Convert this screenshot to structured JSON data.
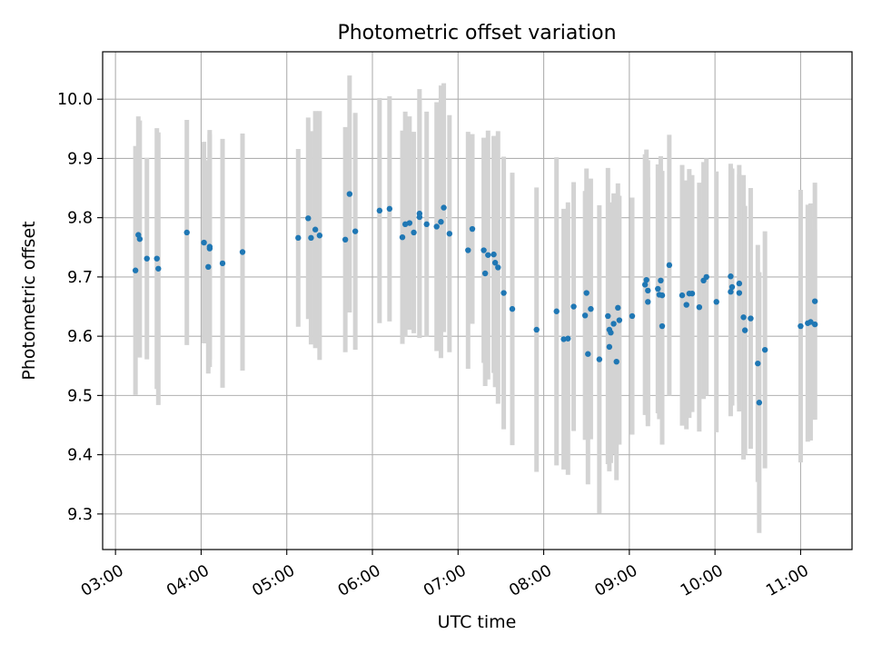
{
  "chart_data": {
    "type": "scatter",
    "title": "Photometric offset variation",
    "xlabel": "UTC time",
    "ylabel": "Photometric offset",
    "grid": true,
    "x_unit": "UTC time (HH:MM)",
    "xlim": [
      "02:51",
      "11:36"
    ],
    "ylim": [
      9.24,
      10.08
    ],
    "x_ticks": [
      "03:00",
      "04:00",
      "05:00",
      "06:00",
      "07:00",
      "08:00",
      "09:00",
      "10:00",
      "11:00"
    ],
    "y_ticks": [
      "9.3",
      "9.4",
      "9.5",
      "9.6",
      "9.7",
      "9.8",
      "9.9",
      "10.0"
    ],
    "colors": {
      "points": "#1f77b4",
      "error_bars": "#d3d3d3",
      "grid": "#b0b0b0"
    },
    "series": [
      {
        "x": [
          "03:14",
          "03:16",
          "03:17",
          "03:22",
          "03:29",
          "03:30",
          "03:50",
          "04:02",
          "04:05",
          "04:06",
          "04:06",
          "04:15",
          "04:29",
          "05:08",
          "05:15",
          "05:17",
          "05:20",
          "05:23",
          "05:41",
          "05:44",
          "05:48",
          "06:05",
          "06:12",
          "06:21",
          "06:23",
          "06:26",
          "06:29",
          "06:33",
          "06:33",
          "06:38",
          "06:45",
          "06:48",
          "06:50",
          "06:54",
          "07:07",
          "07:10",
          "07:18",
          "07:19",
          "07:21",
          "07:25",
          "07:26",
          "07:28",
          "07:32",
          "07:38",
          "07:55",
          "08:09",
          "08:14",
          "08:17",
          "08:21",
          "08:29",
          "08:30",
          "08:31",
          "08:33",
          "08:39",
          "08:45",
          "08:46",
          "08:46",
          "08:47",
          "08:49",
          "08:51",
          "08:52",
          "08:53",
          "09:02",
          "09:11",
          "09:12",
          "09:13",
          "09:13",
          "09:20",
          "09:21",
          "09:22",
          "09:23",
          "09:23",
          "09:28",
          "09:37",
          "09:40",
          "09:42",
          "09:44",
          "09:49",
          "09:52",
          "09:54",
          "10:01",
          "10:11",
          "10:11",
          "10:12",
          "10:17",
          "10:17",
          "10:20",
          "10:21",
          "10:25",
          "10:30",
          "10:31",
          "10:35",
          "11:00",
          "11:05",
          "11:07",
          "11:10",
          "11:10"
        ],
        "y": [
          9.711,
          9.771,
          9.764,
          9.731,
          9.731,
          9.714,
          9.775,
          9.758,
          9.717,
          9.748,
          9.751,
          9.723,
          9.742,
          9.766,
          9.799,
          9.766,
          9.78,
          9.77,
          9.763,
          9.84,
          9.777,
          9.812,
          9.815,
          9.767,
          9.789,
          9.791,
          9.775,
          9.807,
          9.801,
          9.789,
          9.785,
          9.793,
          9.817,
          9.773,
          9.745,
          9.781,
          9.745,
          9.706,
          9.737,
          9.738,
          9.724,
          9.716,
          9.673,
          9.646,
          9.611,
          9.642,
          9.595,
          9.596,
          9.65,
          9.635,
          9.673,
          9.57,
          9.646,
          9.561,
          9.634,
          9.582,
          9.611,
          9.606,
          9.621,
          9.557,
          9.648,
          9.627,
          9.634,
          9.687,
          9.695,
          9.658,
          9.677,
          9.68,
          9.67,
          9.694,
          9.669,
          9.617,
          9.72,
          9.669,
          9.653,
          9.672,
          9.672,
          9.649,
          9.694,
          9.7,
          9.658,
          9.701,
          9.675,
          9.683,
          9.689,
          9.673,
          9.632,
          9.61,
          9.63,
          9.554,
          9.488,
          9.577,
          9.617,
          9.622,
          9.624,
          9.62,
          9.659
        ],
        "yerr": [
          0.21,
          0.2,
          0.2,
          0.17,
          0.22,
          0.23,
          0.19,
          0.17,
          0.18,
          0.2,
          0.19,
          0.21,
          0.2,
          0.15,
          0.17,
          0.18,
          0.2,
          0.21,
          0.19,
          0.2,
          0.2,
          0.19,
          0.19,
          0.18,
          0.19,
          0.18,
          0.17,
          0.21,
          0.2,
          0.19,
          0.21,
          0.23,
          0.21,
          0.2,
          0.2,
          0.16,
          0.19,
          0.19,
          0.21,
          0.2,
          0.21,
          0.23,
          0.23,
          0.23,
          0.24,
          0.26,
          0.22,
          0.23,
          0.21,
          0.21,
          0.21,
          0.22,
          0.22,
          0.26,
          0.25,
          0.21,
          0.21,
          0.22,
          0.22,
          0.2,
          0.21,
          0.21,
          0.2,
          0.22,
          0.22,
          0.21,
          0.22,
          0.21,
          0.21,
          0.21,
          0.21,
          0.2,
          0.22,
          0.22,
          0.21,
          0.21,
          0.2,
          0.21,
          0.2,
          0.2,
          0.22,
          0.19,
          0.21,
          0.2,
          0.2,
          0.2,
          0.24,
          0.21,
          0.22,
          0.2,
          0.22,
          0.2,
          0.23,
          0.2,
          0.2,
          0.16,
          0.2
        ]
      }
    ]
  }
}
